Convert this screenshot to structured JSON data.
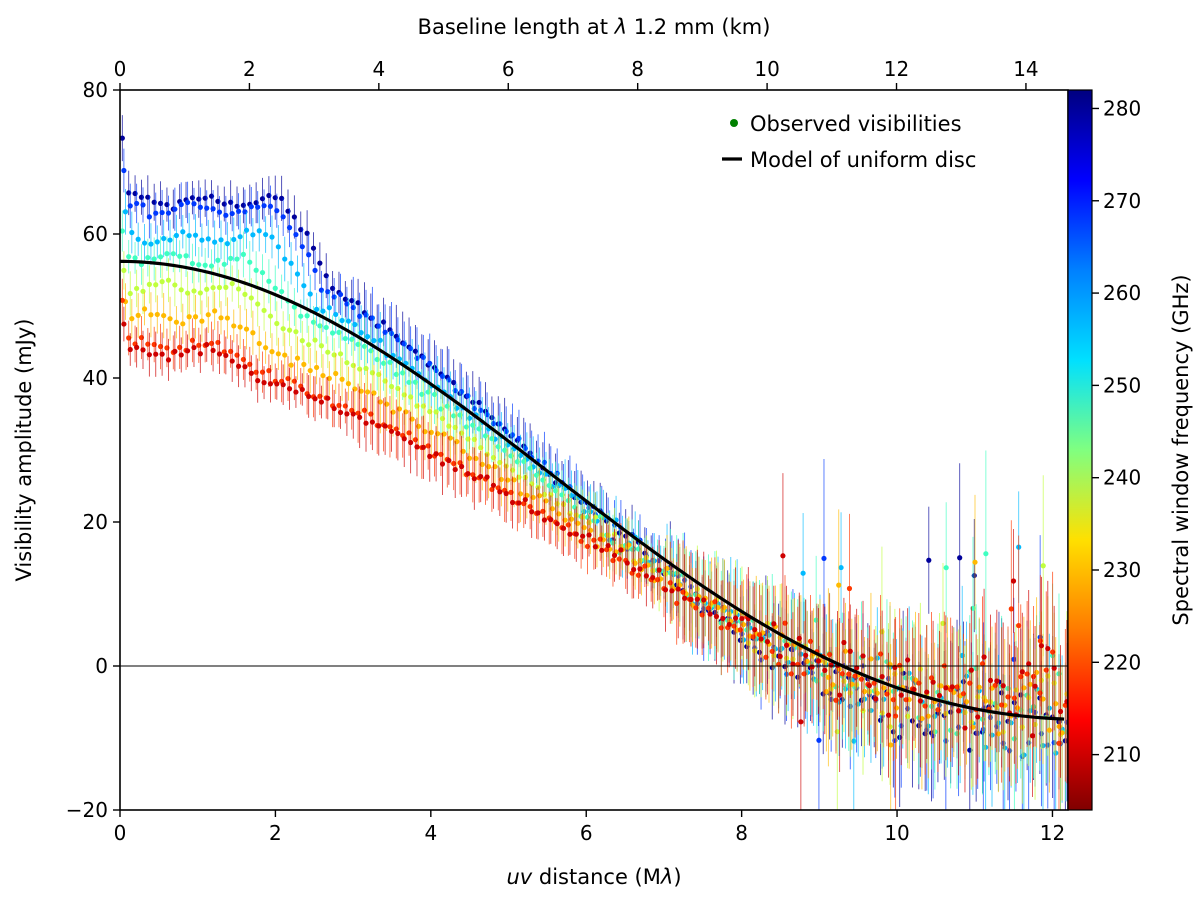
{
  "chart_data": {
    "type": "scatter",
    "title": "",
    "xlabel_parts": [
      "uv",
      " distance (M",
      "λ",
      ")"
    ],
    "ylabel": "Visibility amplitude (mJy)",
    "top_xlabel_parts": [
      "Baseline length at ",
      "λ",
      " 1.2 mm (km)"
    ],
    "xlim": [
      0,
      12.2
    ],
    "ylim": [
      -20,
      80
    ],
    "top_xlim": [
      0,
      14.65
    ],
    "x_ticks": [
      "0",
      "2",
      "4",
      "6",
      "8",
      "10",
      "12"
    ],
    "y_ticks": [
      "−20",
      "0",
      "20",
      "40",
      "60",
      "80"
    ],
    "top_x_ticks": [
      "0",
      "2",
      "4",
      "6",
      "8",
      "10",
      "12",
      "14"
    ],
    "colorbar": {
      "label": "Spectral window frequency (GHz)",
      "range": [
        204,
        282
      ],
      "ticks": [
        "210",
        "220",
        "230",
        "240",
        "250",
        "260",
        "270",
        "280"
      ],
      "colormap": "jet_reversed_from_high_blue_to_low_red"
    },
    "legend": {
      "placement": "top-right",
      "entries": [
        "Observed visibilities",
        "Model of uniform disc"
      ]
    },
    "zero_line": true,
    "model": {
      "name": "Model of uniform disc",
      "zero_amplitude": 56.2,
      "first_null": 9.3,
      "color": "#000000"
    },
    "series": [
      {
        "name": "Observed visibilities",
        "frequency_ghz": 280,
        "start_amplitude": 64.5,
        "plateau_end": 2.1,
        "null": 8.75,
        "min_val": -11.0,
        "early_max": 76,
        "color_hint": "#0000a8"
      },
      {
        "name": "Observed visibilities",
        "frequency_ghz": 268,
        "start_amplitude": 63.5,
        "plateau_end": 2.0,
        "null": 8.85,
        "min_val": -11.0,
        "early_max": 72,
        "color_hint": "#0050ff"
      },
      {
        "name": "Observed visibilities",
        "frequency_ghz": 258,
        "start_amplitude": 59.5,
        "plateau_end": 1.9,
        "null": 8.95,
        "min_val": -10.0,
        "early_max": 67,
        "color_hint": "#00c8ff"
      },
      {
        "name": "Observed visibilities",
        "frequency_ghz": 248,
        "start_amplitude": 56.5,
        "plateau_end": 1.6,
        "null": 9.0,
        "min_val": -8.0,
        "early_max": 62,
        "color_hint": "#55ffaa"
      },
      {
        "name": "Observed visibilities",
        "frequency_ghz": 238,
        "start_amplitude": 52.5,
        "plateau_end": 1.5,
        "null": 9.1,
        "min_val": -7.0,
        "early_max": 58,
        "color_hint": "#c8ff30"
      },
      {
        "name": "Observed visibilities",
        "frequency_ghz": 228,
        "start_amplitude": 48.5,
        "plateau_end": 1.3,
        "null": 9.15,
        "min_val": -6.0,
        "early_max": 55,
        "color_hint": "#ffc800"
      },
      {
        "name": "Observed visibilities",
        "frequency_ghz": 218,
        "start_amplitude": 44.5,
        "plateau_end": 1.2,
        "null": 9.2,
        "min_val": -5.0,
        "early_max": 52,
        "color_hint": "#ff5000"
      },
      {
        "name": "Observed visibilities",
        "frequency_ghz": 210,
        "start_amplitude": 43.5,
        "plateau_end": 1.2,
        "null": 9.3,
        "min_val": -5.0,
        "early_max": 50,
        "color_hint": "#c80000"
      }
    ]
  }
}
